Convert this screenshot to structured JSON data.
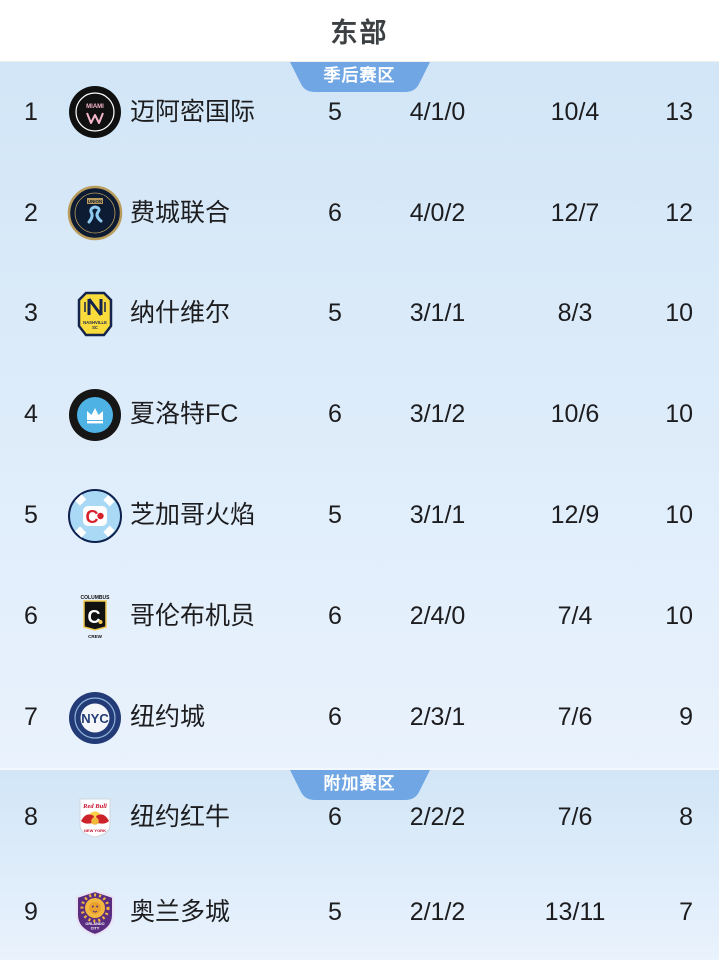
{
  "header": {
    "title": "东部"
  },
  "colors": {
    "badge_blue": "#6fa6e3",
    "table_bg_top": "#d2e6f7",
    "table_bg_bottom": "#e9f2fd",
    "text": "#1d1d1f",
    "badge_text": "#ffffff"
  },
  "table": {
    "sections": [
      {
        "badge": "季后赛区",
        "teams": [
          {
            "rank": "1",
            "logo": "inter-miami",
            "name": "迈阿密国际",
            "played": "5",
            "wdl": "4/1/0",
            "goals": "10/4",
            "points": "13"
          },
          {
            "rank": "2",
            "logo": "philadelphia",
            "name": "费城联合",
            "played": "6",
            "wdl": "4/0/2",
            "goals": "12/7",
            "points": "12"
          },
          {
            "rank": "3",
            "logo": "nashville",
            "name": "纳什维尔",
            "played": "5",
            "wdl": "3/1/1",
            "goals": "8/3",
            "points": "10"
          },
          {
            "rank": "4",
            "logo": "charlotte",
            "name": "夏洛特FC",
            "played": "6",
            "wdl": "3/1/2",
            "goals": "10/6",
            "points": "10"
          },
          {
            "rank": "5",
            "logo": "chicago-fire",
            "name": "芝加哥火焰",
            "played": "5",
            "wdl": "3/1/1",
            "goals": "12/9",
            "points": "10"
          },
          {
            "rank": "6",
            "logo": "columbus-crew",
            "name": "哥伦布机员",
            "played": "6",
            "wdl": "2/4/0",
            "goals": "7/4",
            "points": "10"
          },
          {
            "rank": "7",
            "logo": "nyc-fc",
            "name": "纽约城",
            "played": "6",
            "wdl": "2/3/1",
            "goals": "7/6",
            "points": "9"
          }
        ]
      },
      {
        "badge": "附加赛区",
        "teams": [
          {
            "rank": "8",
            "logo": "ny-red-bulls",
            "name": "纽约红牛",
            "played": "6",
            "wdl": "2/2/2",
            "goals": "7/6",
            "points": "8"
          },
          {
            "rank": "9",
            "logo": "orlando-city",
            "name": "奥兰多城",
            "played": "5",
            "wdl": "2/1/2",
            "goals": "13/11",
            "points": "7"
          }
        ]
      }
    ]
  }
}
